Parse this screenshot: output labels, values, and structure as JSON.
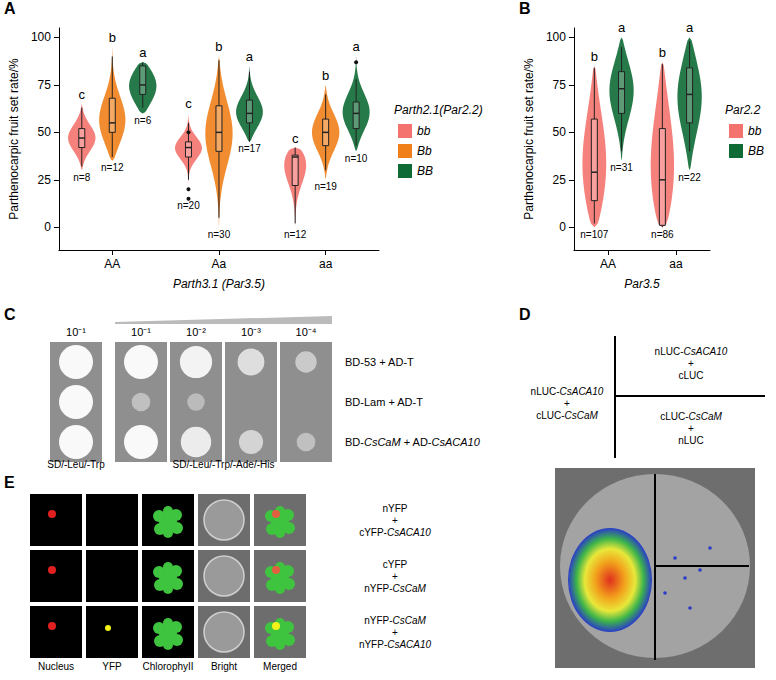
{
  "panel_letters": [
    "A",
    "B",
    "C",
    "D",
    "E"
  ],
  "chart_data": [
    {
      "type": "violin",
      "legend_title": "Parth2.1(Par2.2)",
      "x_label": "Parth3.1 (Par3.5)",
      "y_label": "Parthenocarpic fruit set rate/%",
      "categories": [
        "AA",
        "Aa",
        "aa"
      ],
      "ylim": [
        -12,
        105
      ],
      "yticks": [
        0,
        25,
        50,
        75,
        100
      ],
      "grid": false,
      "legend": "right",
      "series": [
        {
          "name": "bb",
          "color": "#F4736E",
          "violin": [
            [
              30,
              65
            ],
            [
              15,
              60
            ],
            [
              0,
              42
            ]
          ],
          "box": [
            [
              32,
              42,
              47,
              52,
              63
            ],
            [
              25,
              37,
              42,
              45,
              55
            ],
            [
              2,
              22,
              37,
              38,
              42
            ]
          ],
          "outliers": [
            [],
            [
              15,
              20,
              50
            ],
            []
          ],
          "n_labels": [
            "n=8",
            "n=20",
            "n=12"
          ],
          "letters": [
            "c",
            "c",
            "c"
          ]
        },
        {
          "name": "Bb",
          "color": "#F07F1A",
          "violin": [
            [
              35,
              95
            ],
            [
              0,
              90
            ],
            [
              25,
              75
            ]
          ],
          "box": [
            [
              37,
              50,
              55,
              68,
              90
            ],
            [
              5,
              40,
              50,
              64,
              88
            ],
            [
              30,
              43,
              50,
              57,
              70
            ]
          ],
          "outliers": [
            [],
            [],
            []
          ],
          "n_labels": [
            "n=12",
            "n=30",
            "n=19"
          ],
          "letters": [
            "b",
            "b",
            "b"
          ]
        },
        {
          "name": "BB",
          "color": "#0E6B35",
          "violin": [
            [
              60,
              87
            ],
            [
              45,
              85
            ],
            [
              40,
              90
            ]
          ],
          "box": [
            [
              63,
              70,
              75,
              85,
              87
            ],
            [
              45,
              55,
              60,
              67,
              82
            ],
            [
              43,
              52,
              60,
              66,
              78
            ]
          ],
          "outliers": [
            [],
            [],
            [
              87
            ]
          ],
          "n_labels": [
            "n=6",
            "n=17",
            "n=10"
          ],
          "letters": [
            "a",
            "a",
            "a"
          ]
        }
      ]
    },
    {
      "type": "violin",
      "legend_title": "Par2.2",
      "x_label": "Par3.5",
      "y_label": "Parthenocarpic fruit set rate/%",
      "categories": [
        "AA",
        "aa"
      ],
      "ylim": [
        -12,
        105
      ],
      "yticks": [
        0,
        25,
        50,
        75,
        100
      ],
      "grid": false,
      "legend": "right",
      "series": [
        {
          "name": "bb",
          "color": "#F4736E",
          "violin": [
            [
              0,
              85
            ],
            [
              0,
              87
            ]
          ],
          "box": [
            [
              2,
              14,
              29,
              57,
              84
            ],
            [
              0,
              1,
              25,
              52,
              86
            ]
          ],
          "outliers": [
            [],
            []
          ],
          "n_labels": [
            "n=107",
            "n=86"
          ],
          "letters": [
            "b",
            "b"
          ]
        },
        {
          "name": "BB",
          "color": "#0E6B35",
          "violin": [
            [
              35,
              100
            ],
            [
              30,
              100
            ]
          ],
          "box": [
            [
              40,
              60,
              73,
              82,
              95
            ],
            [
              40,
              55,
              70,
              84,
              98
            ]
          ],
          "outliers": [
            [],
            []
          ],
          "n_labels": [
            "n=31",
            "n=22"
          ],
          "letters": [
            "a",
            "a"
          ]
        }
      ]
    }
  ],
  "yeast_two_hybrid": {
    "dilutions_left": [
      "10⁻¹"
    ],
    "dilutions_right": [
      "10⁻¹",
      "10⁻²",
      "10⁻³",
      "10⁻⁴"
    ],
    "rows": [
      "BD-53 + AD-T",
      "BD-Lam + AD-T",
      "BD-CsCaM + AD-CsACA10"
    ],
    "media": [
      "SD/-Leu/-Trp",
      "SD/-Leu/-Trp/-Ade/-His"
    ]
  },
  "luciferase": {
    "left": "nLUC-CsACA10 + cLUC-CsCaM",
    "top_right": "nLUC-CsACA10 + cLUC",
    "bottom_right": "cLUC-CsCaM + nLUC"
  },
  "bifc": {
    "columns": [
      "Nucleus",
      "YFP",
      "ChlorophyII",
      "Bright",
      "Merged"
    ],
    "rows": [
      "nYFP + cYFP-CsACA10",
      "cYFP + nYFP-CsCaM",
      "nYFP-CsCaM + nYFP-CsACA10"
    ]
  }
}
